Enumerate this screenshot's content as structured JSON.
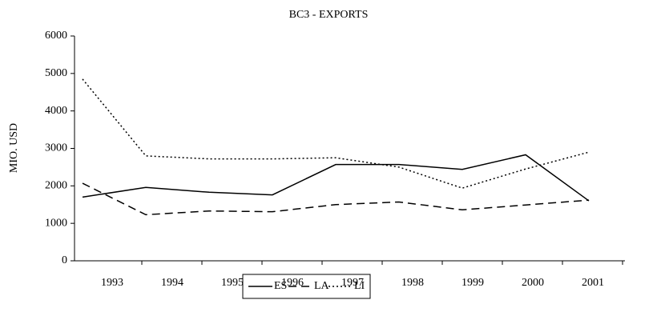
{
  "chart_data": {
    "type": "line",
    "title": "BC3 - EXPORTS",
    "y_label": "MIO. USD",
    "categories": [
      "1993",
      "1994",
      "1995",
      "1996",
      "1997",
      "1998",
      "1999",
      "2000",
      "2001"
    ],
    "series": [
      {
        "name": "ES",
        "color": "#000000",
        "dash": "none",
        "values": [
          1700,
          1960,
          1830,
          1760,
          2570,
          2570,
          2440,
          2830,
          1600
        ]
      },
      {
        "name": "LA",
        "color": "#000000",
        "dash": "10,6",
        "values": [
          2070,
          1230,
          1330,
          1310,
          1500,
          1570,
          1360,
          1490,
          1620
        ]
      },
      {
        "name": "LI",
        "color": "#000000",
        "dash": "2,3",
        "values": [
          4850,
          2800,
          2720,
          2720,
          2750,
          2500,
          1940,
          2450,
          2900
        ]
      }
    ],
    "ylim": [
      0,
      6000
    ],
    "yticks": [
      0,
      1000,
      2000,
      3000,
      4000,
      5000,
      6000
    ],
    "legend": "bottom"
  }
}
